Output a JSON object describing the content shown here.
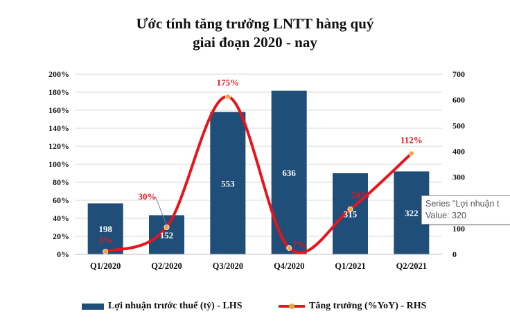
{
  "chart_data": {
    "type": "bar+line",
    "title_line1": "Ước tính tăng trưởng LNTT hàng quý",
    "title_line2": "giai đoạn 2020 - nay",
    "categories": [
      "Q1/2020",
      "Q2/2020",
      "Q3/2020",
      "Q4/2020",
      "Q1/2021",
      "Q2/2021"
    ],
    "series": [
      {
        "name": "Lợi nhuận trước thuế (tỷ) - LHS",
        "type": "bar",
        "color": "#1f4e79",
        "values": [
          198,
          152,
          553,
          636,
          315,
          322
        ],
        "labels": [
          "198",
          "152",
          "553",
          "636",
          "315",
          "322"
        ]
      },
      {
        "name": "Tăng trưởng (%YoY) - RHS",
        "type": "line",
        "color": "#e8131b",
        "marker_color": "#f4a340",
        "values": [
          3,
          30,
          175,
          7,
          50,
          112
        ],
        "labels": [
          "3%",
          "30%",
          "175%",
          "7%",
          "50%",
          "112%"
        ]
      }
    ],
    "left_axis": {
      "min": 0,
      "max": 200,
      "step": 20,
      "ticks": [
        "0%",
        "20%",
        "40%",
        "60%",
        "80%",
        "100%",
        "120%",
        "140%",
        "160%",
        "180%",
        "200%"
      ]
    },
    "right_axis": {
      "min": 0,
      "max": 700,
      "step": 100,
      "ticks": [
        "0",
        "100",
        "200",
        "300",
        "400",
        "500",
        "600",
        "700"
      ]
    },
    "grid": true,
    "legend_position": "bottom"
  },
  "tooltip": {
    "line1": "Series \"Lợi nhuận t",
    "line2": "Value: 320"
  }
}
